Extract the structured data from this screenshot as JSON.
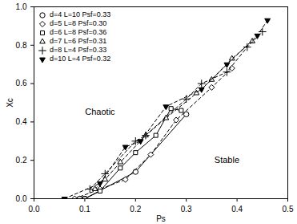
{
  "chart_data": {
    "type": "line",
    "x_label": "Ps",
    "y_label": "Xc",
    "xlim": [
      0.0,
      0.5
    ],
    "ylim": [
      0.0,
      1.0
    ],
    "xticks": [
      {
        "value": 0.0,
        "label": "0.0"
      },
      {
        "value": 0.1,
        "label": "0.1"
      },
      {
        "value": 0.2,
        "label": "0.2"
      },
      {
        "value": 0.3,
        "label": "0.3"
      },
      {
        "value": 0.4,
        "label": "0.4"
      },
      {
        "value": 0.5,
        "label": "0.5"
      }
    ],
    "yticks": [
      {
        "value": 0.0,
        "label": "0.0"
      },
      {
        "value": 0.2,
        "label": "0.2"
      },
      {
        "value": 0.4,
        "label": "0.4"
      },
      {
        "value": 0.6,
        "label": "0.6"
      },
      {
        "value": 0.8,
        "label": "0.8"
      },
      {
        "value": 1.0,
        "label": "1.0"
      }
    ],
    "legend": "top-left",
    "annotations": [
      {
        "text": "Chaotic",
        "x": 0.13,
        "y": 0.45
      },
      {
        "text": "Stable",
        "x": 0.38,
        "y": 0.2
      }
    ],
    "series": [
      {
        "name": "d=4 L=10 Psf=0.33",
        "color": "#000000",
        "marker": "circle",
        "line_style": "solid",
        "x": [
          0.09,
          0.1,
          0.2,
          0.3
        ],
        "values": [
          0.0,
          0.0,
          0.14,
          0.44
        ]
      },
      {
        "name": "d=5 L=8 Psf=0.30",
        "color": "#000000",
        "marker": "diamond",
        "line_style": "dashed",
        "x": [
          0.08,
          0.13,
          0.18,
          0.23,
          0.28,
          0.35,
          0.39
        ],
        "values": [
          0.0,
          0.05,
          0.1,
          0.23,
          0.41,
          0.58,
          0.68
        ]
      },
      {
        "name": "d=6 L=8 Psf=0.36",
        "color": "#000000",
        "marker": "square",
        "line_style": "solid",
        "x": [
          0.1,
          0.13,
          0.17,
          0.2,
          0.24,
          0.27,
          0.29
        ],
        "values": [
          0.0,
          0.04,
          0.16,
          0.24,
          0.33,
          0.47,
          0.46
        ]
      },
      {
        "name": "d=7 L=6 Psf=0.31",
        "color": "#000000",
        "marker": "triangle",
        "line_style": "dashed",
        "x": [
          0.12,
          0.14,
          0.17,
          0.22,
          0.26,
          0.32,
          0.35,
          0.39,
          0.43
        ],
        "values": [
          0.05,
          0.1,
          0.19,
          0.33,
          0.42,
          0.55,
          0.62,
          0.73,
          0.82
        ]
      },
      {
        "name": "d=8 L=4 Psf=0.33",
        "color": "#000000",
        "marker": "plus",
        "line_style": "dashed",
        "x": [
          0.11,
          0.14,
          0.2,
          0.22,
          0.3,
          0.33,
          0.38,
          0.42,
          0.45
        ],
        "values": [
          0.05,
          0.13,
          0.3,
          0.33,
          0.52,
          0.6,
          0.66,
          0.79,
          0.87
        ]
      },
      {
        "name": "d=10 L=4 Psf=0.32",
        "color": "#000000",
        "marker": "filled-triangle-down",
        "line_style": "dashed",
        "x": [
          0.06,
          0.13,
          0.18,
          0.21,
          0.26,
          0.33,
          0.38,
          0.44,
          0.46
        ],
        "values": [
          0.0,
          0.08,
          0.27,
          0.3,
          0.48,
          0.57,
          0.7,
          0.85,
          0.93
        ]
      }
    ]
  }
}
